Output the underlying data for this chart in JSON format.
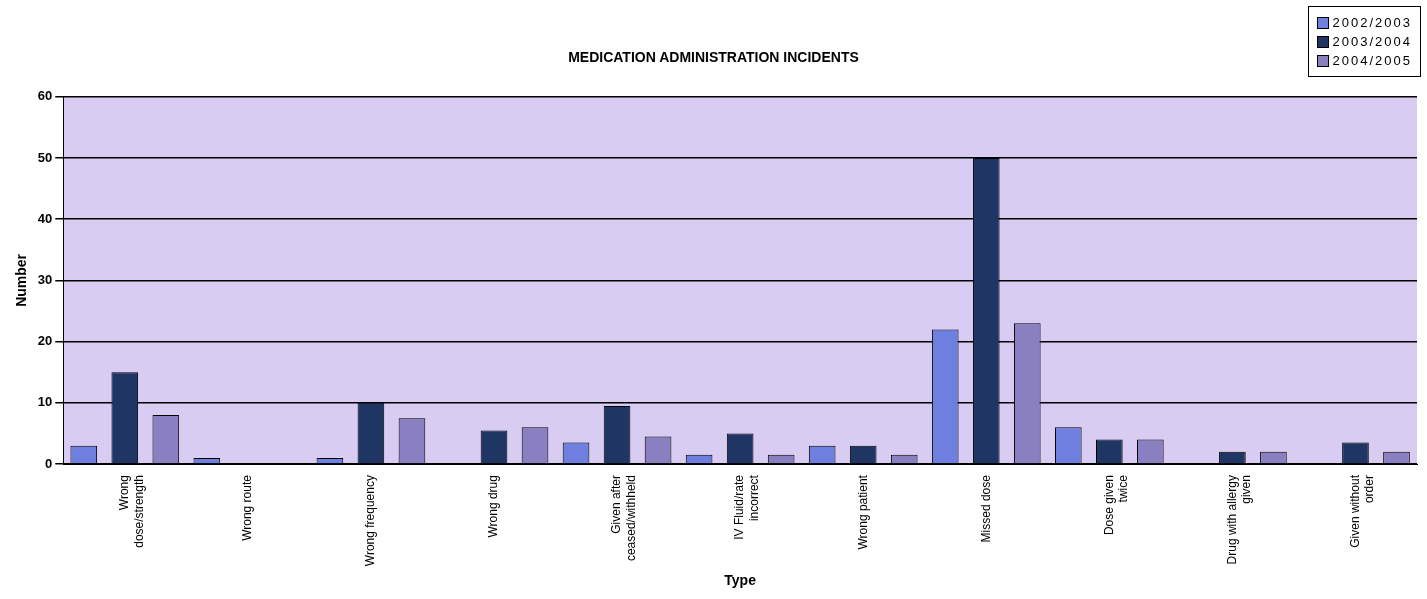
{
  "chart_data": {
    "type": "bar",
    "title": "MEDICATION ADMINISTRATION INCIDENTS",
    "xlabel": "Type",
    "ylabel": "Number",
    "categories": [
      "Wrong\ndose/strength",
      "Wrong route",
      "Wrong frequency",
      "Wrong drug",
      "Given after\nceased/withheld",
      "IV Fluid/rate\nincorrect",
      "Wrong patient",
      "Missed dose",
      "Dose given\ntwice",
      "Drug with allergy\ngiven",
      "Given without\norder"
    ],
    "series": [
      {
        "name": "2002/2003",
        "color": "#6f7fe0",
        "values": [
          3,
          1,
          1,
          0,
          3.5,
          1.5,
          3,
          22,
          6,
          0,
          0
        ]
      },
      {
        "name": "2003/2004",
        "color": "#1f3564",
        "values": [
          15,
          0,
          10,
          5.5,
          9.5,
          5,
          3,
          50,
          4,
          2,
          3.5
        ]
      },
      {
        "name": "2004/2005",
        "color": "#8a7fc0",
        "values": [
          8,
          0,
          7.5,
          6,
          4.5,
          1.5,
          1.5,
          23,
          4,
          2,
          2
        ]
      }
    ],
    "ylim": [
      0,
      60
    ],
    "yticks": [
      0,
      10,
      20,
      30,
      40,
      50,
      60
    ],
    "grid": "y",
    "legend": "top right"
  }
}
